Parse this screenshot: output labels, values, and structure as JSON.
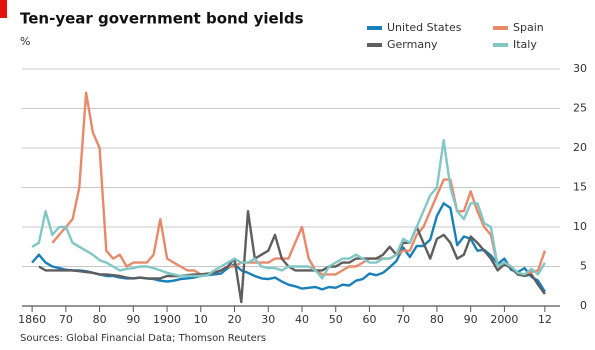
{
  "chart_data": {
    "type": "line",
    "title": "Ten-year government bond yields",
    "subtitle": "%",
    "source": "Sources: Global Financial Data; Thomson Reuters",
    "x": [
      1860,
      1862,
      1864,
      1866,
      1868,
      1870,
      1872,
      1874,
      1876,
      1878,
      1880,
      1882,
      1884,
      1886,
      1888,
      1890,
      1892,
      1894,
      1896,
      1898,
      1900,
      1902,
      1904,
      1906,
      1908,
      1910,
      1912,
      1914,
      1916,
      1918,
      1920,
      1922,
      1924,
      1926,
      1928,
      1930,
      1932,
      1934,
      1936,
      1938,
      1940,
      1942,
      1944,
      1946,
      1948,
      1950,
      1952,
      1954,
      1956,
      1958,
      1960,
      1962,
      1964,
      1966,
      1968,
      1970,
      1972,
      1974,
      1976,
      1978,
      1980,
      1982,
      1984,
      1986,
      1988,
      1990,
      1992,
      1994,
      1996,
      1998,
      2000,
      2002,
      2004,
      2006,
      2008,
      2010,
      2012
    ],
    "series": [
      {
        "name": "United States",
        "color": "#1a80ba",
        "values": [
          5.5,
          6.5,
          5.5,
          5.0,
          4.8,
          4.6,
          4.5,
          4.5,
          4.4,
          4.2,
          4.0,
          3.8,
          3.8,
          3.6,
          3.5,
          3.5,
          3.6,
          3.5,
          3.4,
          3.2,
          3.1,
          3.2,
          3.4,
          3.5,
          3.6,
          3.8,
          3.9,
          4.0,
          4.1,
          4.8,
          5.3,
          4.5,
          4.2,
          3.8,
          3.5,
          3.4,
          3.6,
          3.1,
          2.7,
          2.5,
          2.2,
          2.3,
          2.4,
          2.1,
          2.4,
          2.3,
          2.7,
          2.6,
          3.2,
          3.4,
          4.1,
          3.9,
          4.2,
          4.9,
          5.7,
          7.4,
          6.2,
          7.6,
          7.6,
          8.4,
          11.4,
          13.0,
          12.4,
          7.7,
          8.8,
          8.5,
          7.0,
          7.1,
          6.4,
          5.3,
          6.0,
          4.6,
          4.3,
          4.8,
          3.7,
          3.2,
          1.8
        ]
      },
      {
        "name": "Spain",
        "color": "#e8896a",
        "values": [
          null,
          null,
          null,
          8,
          9,
          10,
          11,
          15,
          27,
          22,
          20,
          7,
          6,
          6.5,
          5,
          5.5,
          5.5,
          5.5,
          6.5,
          11,
          6,
          5.5,
          5,
          4.5,
          4.5,
          4,
          4,
          4.2,
          4.5,
          5,
          5,
          5.5,
          5.5,
          5.5,
          5.5,
          5.5,
          6,
          6,
          6,
          8,
          10,
          6,
          4.5,
          4,
          4,
          4,
          4.5,
          5,
          5,
          5.5,
          6,
          6,
          6,
          6,
          6.5,
          7,
          7,
          9,
          10,
          12,
          14,
          16,
          16,
          12,
          12,
          14.5,
          12,
          10,
          9,
          5,
          5.5,
          5,
          4,
          4,
          4.3,
          4.5,
          7
        ]
      },
      {
        "name": "Germany",
        "color": "#5e5e5e",
        "values": [
          null,
          5,
          4.5,
          4.5,
          4.5,
          4.5,
          4.5,
          4.4,
          4.3,
          4.2,
          4,
          4,
          3.9,
          3.8,
          3.6,
          3.5,
          3.6,
          3.5,
          3.5,
          3.5,
          3.8,
          3.8,
          3.8,
          3.9,
          4,
          4,
          4.1,
          4.2,
          4.5,
          5,
          6,
          0.5,
          12,
          6,
          6.5,
          7,
          9,
          6,
          5,
          4.5,
          4.5,
          4.5,
          4.5,
          4.5,
          5,
          5,
          5.5,
          5.5,
          6,
          6,
          6,
          6,
          6.5,
          7.5,
          6.5,
          8,
          8,
          10,
          8,
          6,
          8.5,
          9,
          8,
          6,
          6.5,
          8.8,
          8,
          7,
          6,
          4.5,
          5.3,
          4.8,
          4,
          3.8,
          4,
          2.7,
          1.5
        ]
      },
      {
        "name": "Italy",
        "color": "#80c7c5",
        "values": [
          7.5,
          8,
          12,
          9,
          10,
          10,
          8,
          7.5,
          7,
          6.5,
          5.8,
          5.5,
          5,
          4.5,
          4.7,
          4.8,
          5,
          5,
          4.8,
          4.5,
          4.2,
          4,
          3.8,
          3.8,
          3.8,
          3.8,
          3.9,
          4.5,
          5,
          5.5,
          6,
          5.5,
          5.5,
          6,
          5,
          4.8,
          4.8,
          4.5,
          5,
          5,
          5,
          5,
          4.5,
          3.5,
          5,
          5.5,
          6,
          6,
          6.5,
          6,
          5.5,
          5.5,
          6,
          6,
          6.5,
          8.5,
          8,
          10,
          12,
          14,
          15,
          21,
          15,
          12,
          11,
          13,
          13,
          10.5,
          10,
          5,
          5.5,
          5,
          4.2,
          4,
          4.7,
          4,
          5.5
        ]
      }
    ],
    "xlim": [
      1857,
      2015
    ],
    "xticks": [
      1860,
      {
        "value": 1870,
        "label": "70"
      },
      {
        "value": 1880,
        "label": "80"
      },
      {
        "value": 1890,
        "label": "90"
      },
      1900,
      {
        "value": 1910,
        "label": "10"
      },
      {
        "value": 1920,
        "label": "20"
      },
      {
        "value": 1930,
        "label": "30"
      },
      {
        "value": 1940,
        "label": "40"
      },
      {
        "value": 1950,
        "label": "50"
      },
      {
        "value": 1960,
        "label": "60"
      },
      {
        "value": 1970,
        "label": "70"
      },
      {
        "value": 1980,
        "label": "80"
      },
      {
        "value": 1990,
        "label": "90"
      },
      2000,
      {
        "value": 2012,
        "label": "12"
      }
    ],
    "ylim": [
      0,
      30
    ],
    "yticks": [
      0,
      5,
      10,
      15,
      20,
      25,
      30
    ],
    "grid": true
  }
}
